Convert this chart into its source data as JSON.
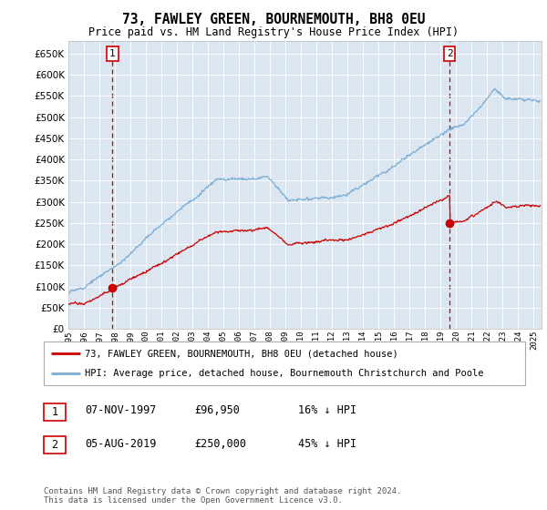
{
  "title": "73, FAWLEY GREEN, BOURNEMOUTH, BH8 0EU",
  "subtitle": "Price paid vs. HM Land Registry's House Price Index (HPI)",
  "background_color": "#ffffff",
  "plot_bg_color": "#dce6f1",
  "ylim": [
    0,
    680000
  ],
  "yticks": [
    0,
    50000,
    100000,
    150000,
    200000,
    250000,
    300000,
    350000,
    400000,
    450000,
    500000,
    550000,
    600000,
    650000
  ],
  "xlim_start": 1995.0,
  "xlim_end": 2025.5,
  "sale1_date": 1997.85,
  "sale1_price": 96950,
  "sale2_date": 2019.58,
  "sale2_price": 250000,
  "red_line_color": "#cc0000",
  "blue_line_color": "#7aaed6",
  "dashed_line_color": "#cc0000",
  "legend_label_red": "73, FAWLEY GREEN, BOURNEMOUTH, BH8 0EU (detached house)",
  "legend_label_blue": "HPI: Average price, detached house, Bournemouth Christchurch and Poole",
  "note1_date": "07-NOV-1997",
  "note1_price": "£96,950",
  "note1_hpi": "16% ↓ HPI",
  "note2_date": "05-AUG-2019",
  "note2_price": "£250,000",
  "note2_hpi": "45% ↓ HPI",
  "copyright_text": "Contains HM Land Registry data © Crown copyright and database right 2024.\nThis data is licensed under the Open Government Licence v3.0."
}
